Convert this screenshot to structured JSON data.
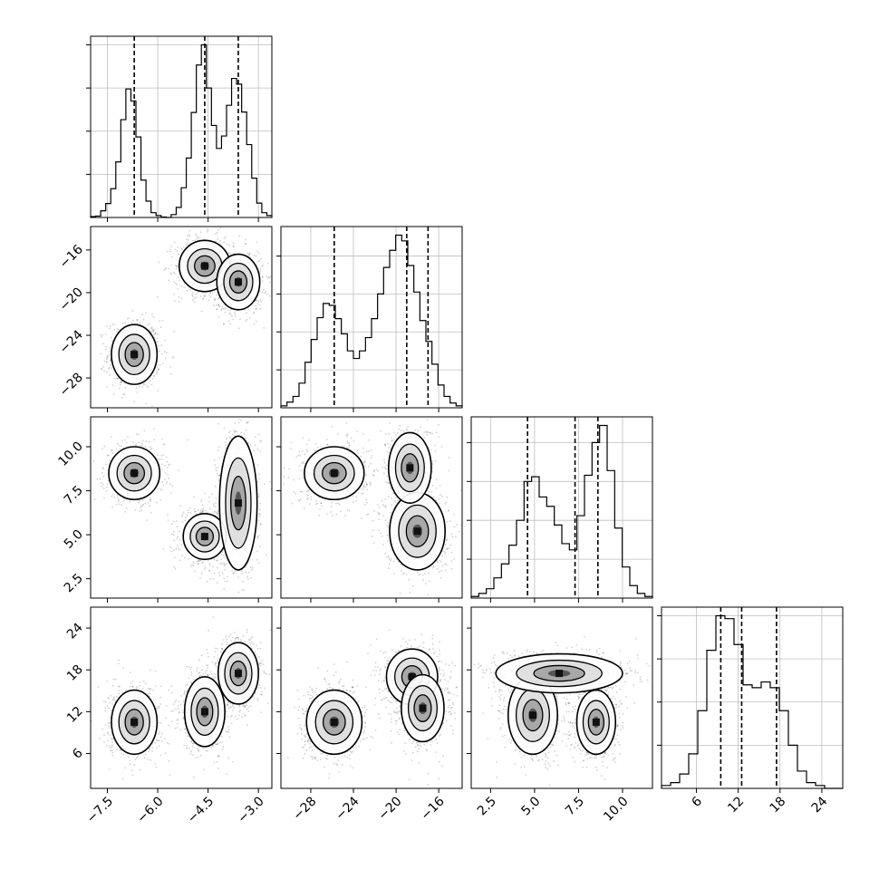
{
  "chart_data": {
    "type": "corner",
    "parameters": 4,
    "grid": true,
    "panels": [
      {
        "id": "hist-0",
        "type": "histogram",
        "variable": 0,
        "range": [
          -8.0,
          -2.6
        ],
        "bin_counts": [
          2,
          3,
          14,
          29,
          60,
          116,
          204,
          268,
          243,
          168,
          78,
          34,
          10,
          4,
          1,
          0,
          6,
          21,
          62,
          124,
          219,
          318,
          360,
          270,
          192,
          144,
          170,
          234,
          290,
          278,
          220,
          152,
          82,
          30,
          10,
          4
        ],
        "quantiles": [
          -6.7,
          -4.6,
          -3.6
        ],
        "x_ticks": [
          "−7.5",
          "−6.0",
          "−4.5",
          "−3.0"
        ]
      },
      {
        "id": "scatter-1-0",
        "type": "2d-density",
        "x_variable": 0,
        "y_variable": 1,
        "x_range": [
          -8.0,
          -2.6
        ],
        "y_range": [
          -30.8,
          -13.8
        ],
        "modes": [
          {
            "x": -6.7,
            "y": -25.8,
            "sx": 0.34,
            "sy": 1.4
          },
          {
            "x": -4.6,
            "y": -17.5,
            "sx": 0.38,
            "sy": 1.2
          },
          {
            "x": -3.6,
            "y": -19.0,
            "sx": 0.32,
            "sy": 1.3
          }
        ],
        "y_ticks": [
          "−28",
          "−24",
          "−20",
          "−16"
        ]
      },
      {
        "id": "hist-1",
        "type": "histogram",
        "variable": 1,
        "range": [
          -30.8,
          -13.8
        ],
        "bin_counts": [
          2,
          6,
          12,
          26,
          48,
          72,
          95,
          110,
          108,
          94,
          78,
          60,
          52,
          60,
          74,
          94,
          120,
          148,
          166,
          182,
          176,
          150,
          122,
          92,
          70,
          46,
          24,
          12,
          5,
          2
        ],
        "quantiles": [
          -25.8,
          -19.0,
          -17.0
        ],
        "x_ticks": [
          "−28",
          "−24",
          "−20",
          "−16"
        ]
      },
      {
        "id": "scatter-2-0",
        "type": "2d-density",
        "x_variable": 0,
        "y_variable": 2,
        "x_range": [
          -8.0,
          -2.6
        ],
        "y_range": [
          1.4,
          11.7
        ],
        "modes": [
          {
            "x": -6.7,
            "y": 8.5,
            "sx": 0.38,
            "sy": 0.75
          },
          {
            "x": -4.6,
            "y": 4.9,
            "sx": 0.32,
            "sy": 0.65
          },
          {
            "x": -3.6,
            "y": 6.8,
            "sx": 0.28,
            "sy": 1.9
          }
        ],
        "y_ticks": [
          "2.5",
          "5.0",
          "7.5",
          "10.0"
        ]
      },
      {
        "id": "scatter-2-1",
        "type": "2d-density",
        "x_variable": 1,
        "y_variable": 2,
        "x_range": [
          -30.8,
          -13.8
        ],
        "y_range": [
          1.4,
          11.7
        ],
        "modes": [
          {
            "x": -25.8,
            "y": 8.5,
            "sx": 1.4,
            "sy": 0.75
          },
          {
            "x": -18.0,
            "y": 5.2,
            "sx": 1.3,
            "sy": 1.1
          },
          {
            "x": -18.7,
            "y": 8.8,
            "sx": 1.0,
            "sy": 1.0
          }
        ],
        "y_ticks": []
      },
      {
        "id": "hist-2",
        "type": "histogram",
        "variable": 2,
        "range": [
          1.4,
          11.7
        ],
        "bin_counts": [
          2,
          6,
          12,
          26,
          44,
          68,
          100,
          150,
          156,
          130,
          118,
          94,
          70,
          62,
          106,
          158,
          200,
          222,
          164,
          90,
          40,
          16,
          6,
          2
        ],
        "quantiles": [
          4.6,
          7.3,
          8.6
        ],
        "x_ticks": [
          "2.5",
          "5.0",
          "7.5",
          "10.0"
        ]
      },
      {
        "id": "scatter-3-0",
        "type": "2d-density",
        "x_variable": 0,
        "y_variable": 3,
        "x_range": [
          -8.0,
          -2.6
        ],
        "y_range": [
          1.0,
          27.0
        ],
        "modes": [
          {
            "x": -6.7,
            "y": 10.5,
            "sx": 0.34,
            "sy": 2.3
          },
          {
            "x": -4.6,
            "y": 12.0,
            "sx": 0.3,
            "sy": 2.5
          },
          {
            "x": -3.6,
            "y": 17.5,
            "sx": 0.3,
            "sy": 2.2
          }
        ],
        "y_ticks": [
          "6",
          "12",
          "18",
          "24"
        ],
        "x_ticks": [
          "−7.5",
          "−6.0",
          "−4.5",
          "−3.0"
        ]
      },
      {
        "id": "scatter-3-1",
        "type": "2d-density",
        "x_variable": 1,
        "y_variable": 3,
        "x_range": [
          -30.8,
          -13.8
        ],
        "y_range": [
          1.0,
          27.0
        ],
        "modes": [
          {
            "x": -25.8,
            "y": 10.5,
            "sx": 1.3,
            "sy": 2.3
          },
          {
            "x": -18.5,
            "y": 17.0,
            "sx": 1.2,
            "sy": 2.0
          },
          {
            "x": -17.5,
            "y": 12.5,
            "sx": 1.0,
            "sy": 2.4
          }
        ],
        "y_ticks": [],
        "x_ticks": [
          "−28",
          "−24",
          "−20",
          "−16"
        ]
      },
      {
        "id": "scatter-3-2",
        "type": "2d-density",
        "x_variable": 2,
        "y_variable": 3,
        "x_range": [
          1.4,
          11.7
        ],
        "y_range": [
          1.0,
          27.0
        ],
        "modes": [
          {
            "x": 4.9,
            "y": 11.5,
            "sx": 0.7,
            "sy": 2.8
          },
          {
            "x": 8.5,
            "y": 10.5,
            "sx": 0.55,
            "sy": 2.3
          },
          {
            "x": 6.4,
            "y": 17.5,
            "sx": 1.8,
            "sy": 1.4
          }
        ],
        "y_ticks": [],
        "x_ticks": [
          "2.5",
          "5.0",
          "7.5",
          "10.0"
        ]
      },
      {
        "id": "hist-3",
        "type": "histogram",
        "variable": 3,
        "range": [
          1.0,
          27.0
        ],
        "bin_counts": [
          2,
          4,
          10,
          24,
          54,
          96,
          120,
          118,
          100,
          72,
          70,
          74,
          70,
          54,
          30,
          12,
          4,
          2,
          0,
          0
        ],
        "quantiles": [
          9.5,
          12.5,
          17.5
        ],
        "x_ticks": [
          "6",
          "12",
          "18",
          "24"
        ]
      }
    ]
  }
}
